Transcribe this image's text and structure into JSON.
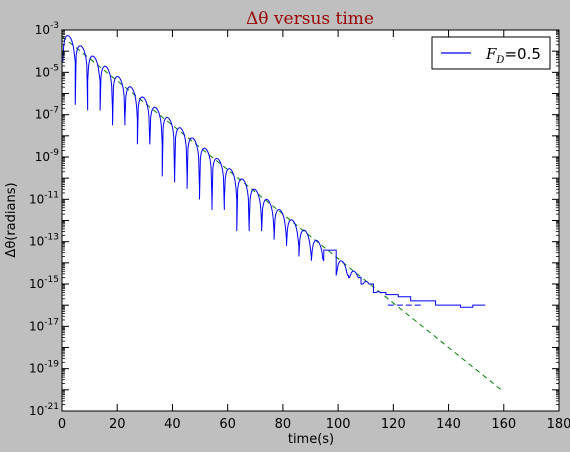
{
  "chart_data": {
    "type": "line",
    "title": "Δθ versus time",
    "xlabel": "time(s)",
    "ylabel": "Δθ(radians)",
    "xlim": [
      0,
      180
    ],
    "ylim_log10": [
      -21,
      -3
    ],
    "y_scale": "log",
    "grid": false,
    "legend_placement": "top-right",
    "x_ticks": [
      "0",
      "20",
      "40",
      "60",
      "80",
      "100",
      "120",
      "140",
      "160",
      "180"
    ],
    "y_ticks": [
      {
        "base": "10",
        "exp": "-21"
      },
      {
        "base": "10",
        "exp": "-19"
      },
      {
        "base": "10",
        "exp": "-17"
      },
      {
        "base": "10",
        "exp": "-15"
      },
      {
        "base": "10",
        "exp": "-13"
      },
      {
        "base": "10",
        "exp": "-11"
      },
      {
        "base": "10",
        "exp": "-9"
      },
      {
        "base": "10",
        "exp": "-7"
      },
      {
        "base": "10",
        "exp": "-5"
      },
      {
        "base": "10",
        "exp": "-3"
      }
    ],
    "legend": {
      "symbol": "F",
      "sub": "D",
      "value": "=0.5"
    },
    "series": [
      {
        "legend": "F_D=0.5",
        "color": "#0000ff",
        "style": "solid",
        "decay_start": {
          "t": 0.3,
          "delta_theta": 0.0009
        },
        "decay_end": {
          "t": 118,
          "delta_theta": 2e-16
        },
        "oscillation_half_period_s": 4.5,
        "minima_log10": [
          -4.5,
          -6.8,
          -5.4,
          -6.8,
          -7.5,
          -7.2,
          -8.4,
          -8.4,
          -10.2,
          -9.9,
          -10.5,
          -11.0,
          -11.5,
          -11.0,
          -12.5,
          -12.2,
          -12.5,
          -12.9,
          -13.2,
          -13.7,
          -13.9,
          -13.4,
          -14.6,
          -14.7,
          -15.0,
          -15.4,
          -15.5,
          -15.6,
          -15.8,
          -15.8,
          -16.0,
          -16.0,
          -16.1,
          -16.0
        ],
        "noise_floor": {
          "t_start": 118,
          "t_end": 131,
          "delta_theta": 1e-16
        }
      },
      {
        "legend": "",
        "color": "#008000",
        "style": "dashed",
        "x": [
          0,
          160
        ],
        "y": [
          0.0005,
          8e-21
        ]
      }
    ]
  }
}
